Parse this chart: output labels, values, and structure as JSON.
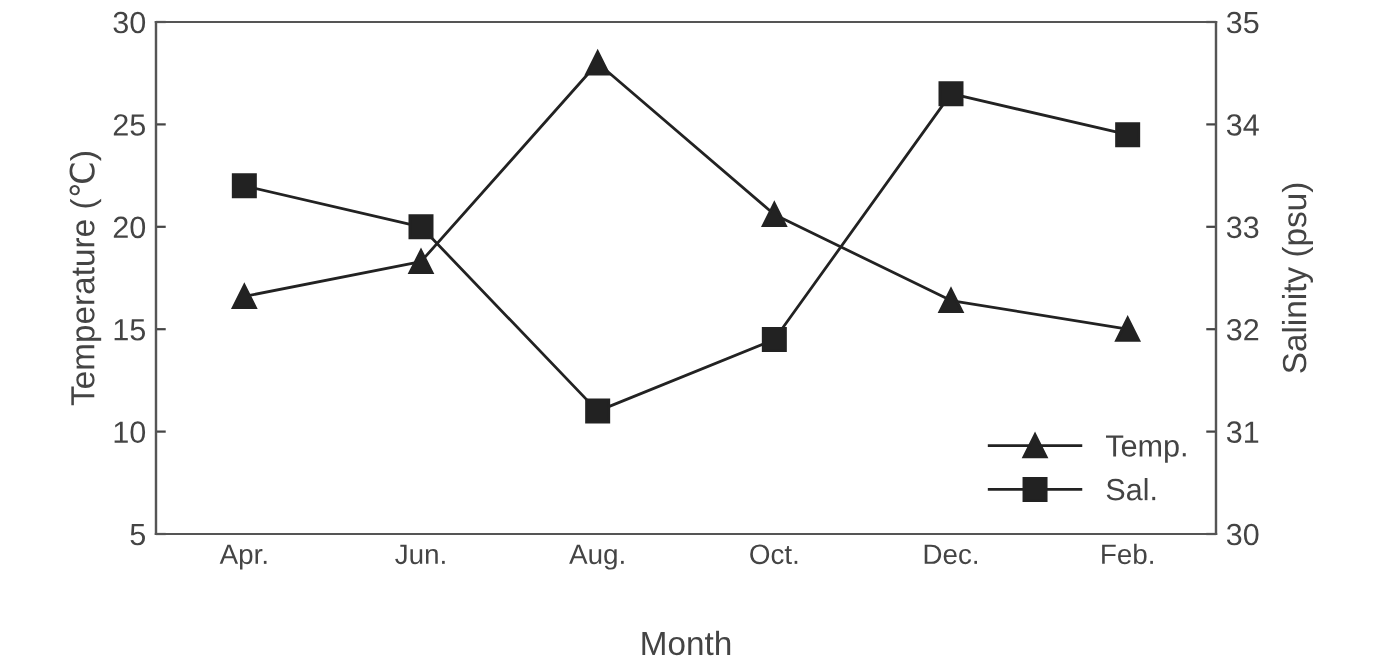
{
  "chart_data": {
    "type": "line",
    "xlabel": "Month",
    "ylabel": "Temperature (℃)",
    "y2label": "Salinity (psu)",
    "categories": [
      "Apr.",
      "Jun.",
      "Aug.",
      "Oct.",
      "Dec.",
      "Feb."
    ],
    "series": [
      {
        "name": "Temp.",
        "color": "#222222",
        "marker": "triangle",
        "values": [
          16.6,
          18.3,
          28.0,
          20.6,
          16.4,
          15.0
        ]
      },
      {
        "name": "Sal.",
        "color": "#222222",
        "marker": "square",
        "axis": "y2",
        "values": [
          33.4,
          33.0,
          31.2,
          31.9,
          34.3,
          33.9
        ]
      }
    ],
    "ylim": [
      5,
      30
    ],
    "yticks": [
      5,
      10,
      15,
      20,
      25,
      30
    ],
    "y2lim": [
      30,
      35
    ],
    "y2ticks": [
      30,
      31,
      32,
      33,
      34,
      35
    ],
    "legend": "bottom right",
    "grid": false,
    "line_style": "solid"
  }
}
